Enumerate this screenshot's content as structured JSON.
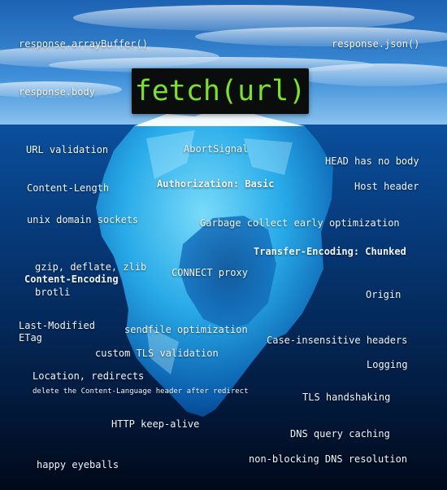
{
  "title": "fetch(url)",
  "colors": {
    "title_text": "#7be02f",
    "title_bg": "#0b0c0c",
    "sky": "#2f7fd0",
    "ocean_deep": "#02122b"
  },
  "above_water": {
    "array_buffer": "response.arrayBuffer()",
    "json": "response.json()",
    "body": "response.body"
  },
  "below_water": {
    "url_validation": "URL validation",
    "abort_signal": "AbortSignal",
    "head_no_body": "HEAD has no body",
    "content_length": "Content-Length",
    "authorization": "Authorization: Basic",
    "host_header": "Host header",
    "unix_sockets": "unix domain sockets",
    "gc_optimization": "Garbage collect early optimization",
    "transfer_encoding": "Transfer-Encoding: Chunked",
    "gzip": "gzip, deflate, zlib",
    "connect_proxy": "CONNECT proxy",
    "content_encoding": "Content-Encoding",
    "brotli": "brotli",
    "origin": "Origin",
    "last_modified": "Last-Modified",
    "etag": "ETag",
    "sendfile": "sendfile optimization",
    "case_insensitive": "Case-insensitive headers",
    "custom_tls": "custom TLS validation",
    "logging": "Logging",
    "location_redirects": "Location, redirects",
    "delete_content_language": "delete the Content-Language header after redirect",
    "tls_handshaking": "TLS handshaking",
    "keep_alive": "HTTP keep-alive",
    "dns_caching": "DNS query caching",
    "nonblocking_dns": "non-blocking DNS resolution",
    "happy_eyeballs": "happy eyeballs"
  }
}
